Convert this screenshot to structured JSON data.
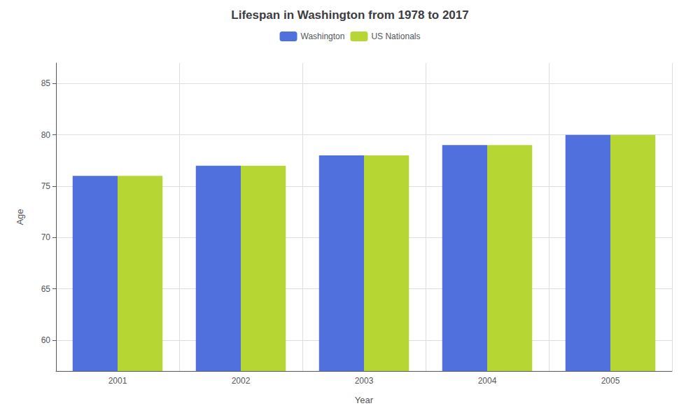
{
  "chart_data": {
    "type": "bar",
    "title": "Lifespan in Washington from 1978 to 2017",
    "xlabel": "Year",
    "ylabel": "Age",
    "categories": [
      "2001",
      "2002",
      "2003",
      "2004",
      "2005"
    ],
    "series": [
      {
        "name": "Washington",
        "values": [
          76,
          77,
          78,
          79,
          80
        ]
      },
      {
        "name": "US Nationals",
        "values": [
          76,
          77,
          78,
          79,
          80
        ]
      }
    ],
    "ylim": [
      57,
      87
    ],
    "yticks": [
      60,
      65,
      70,
      75,
      80,
      85
    ],
    "grid": true,
    "legend": "upper center"
  }
}
